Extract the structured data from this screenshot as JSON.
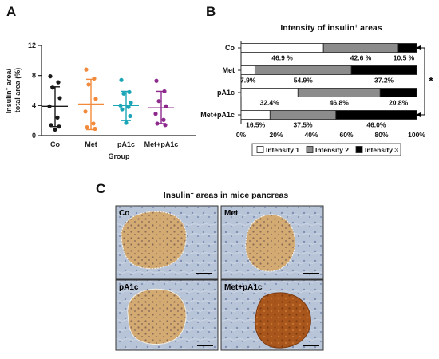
{
  "panels": {
    "a": "A",
    "b": "B",
    "c": "C"
  },
  "chart_data": [
    {
      "type": "scatter",
      "ylabel": "Insulin+ area/ total area (%)",
      "ylabel_parts": [
        "Insulin",
        "+",
        " area/",
        "total area (%)"
      ],
      "xlabel": "Group",
      "ylim": [
        0,
        12
      ],
      "yticks": [
        "0",
        "4",
        "8",
        "12"
      ],
      "ytick_values": [
        0,
        4,
        8,
        12
      ],
      "categories": [
        "Co",
        "Met",
        "pA1c",
        "Met+pA1c"
      ],
      "colors": [
        "#1a1a1a",
        "#f28a3c",
        "#1aa6b7",
        "#8e2a8e"
      ],
      "groups": [
        {
          "name": "Co",
          "mean": 3.9,
          "sd_low": 1.2,
          "sd_high": 6.5,
          "points": [
            7.9,
            7.1,
            6.4,
            5.0,
            3.9,
            2.4,
            1.4,
            1.2,
            0.8
          ]
        },
        {
          "name": "Met",
          "mean": 4.2,
          "sd_low": 0.8,
          "sd_high": 7.5,
          "points": [
            8.8,
            7.6,
            6.8,
            4.9,
            3.2,
            1.6,
            1.1,
            0.9
          ]
        },
        {
          "name": "pA1c",
          "mean": 4.0,
          "sd_low": 2.0,
          "sd_high": 5.9,
          "points": [
            7.4,
            5.8,
            5.6,
            4.4,
            4.0,
            3.8,
            3.5,
            2.6,
            1.7
          ]
        },
        {
          "name": "Met+pA1c",
          "mean": 3.7,
          "sd_low": 1.6,
          "sd_high": 5.9,
          "points": [
            7.3,
            5.9,
            4.6,
            3.9,
            2.9,
            2.1,
            1.6,
            1.4
          ]
        }
      ]
    },
    {
      "type": "bar",
      "stacked": true,
      "orientation": "horizontal",
      "title": "Intensity of insulin+ areas",
      "title_parts": [
        "Intensity of insulin",
        "+",
        " areas"
      ],
      "categories": [
        "Co",
        "Met",
        "pA1c",
        "Met+pA1c"
      ],
      "xlim": [
        0,
        100
      ],
      "xticks": [
        "0%",
        "20%",
        "40%",
        "60%",
        "80%",
        "100%"
      ],
      "series": [
        {
          "name": "Intensity 1",
          "color": "#ffffff",
          "values": [
            46.9,
            7.9,
            32.4,
            16.5
          ],
          "labels": [
            "46.9 %",
            "7.9%",
            "32.4%",
            "16.5%"
          ]
        },
        {
          "name": "Intensity 2",
          "color": "#8c8c8c",
          "values": [
            42.6,
            54.9,
            46.8,
            37.5
          ],
          "labels": [
            "42.6 %",
            "54.9%",
            "46.8%",
            "37.5%"
          ]
        },
        {
          "name": "Intensity 3",
          "color": "#000000",
          "values": [
            10.5,
            37.2,
            20.8,
            46.0
          ],
          "labels": [
            "10.5 %",
            "37.2%",
            "20.8%",
            "46.0%"
          ]
        }
      ],
      "annotation": "*"
    }
  ],
  "micrographs": {
    "title": "Insulin+ areas in mice pancreas",
    "title_parts": [
      "Insulin",
      "+",
      " areas in mice pancreas"
    ],
    "labels": [
      "Co",
      "Met",
      "pA1c",
      "Met+pA1c"
    ]
  }
}
